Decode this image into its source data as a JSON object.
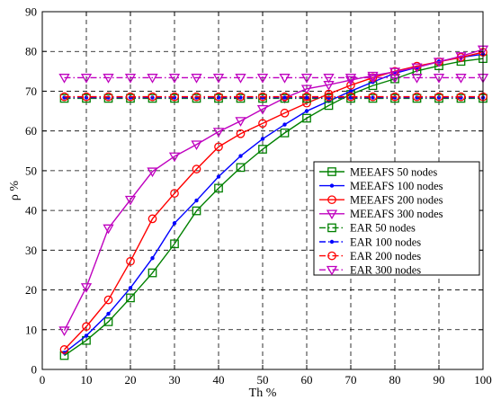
{
  "chart_data": {
    "type": "line",
    "title": "",
    "xlabel": "Th %",
    "ylabel": "ρ %",
    "xlim": [
      0,
      100
    ],
    "ylim": [
      0,
      90
    ],
    "xticks": [
      0,
      10,
      20,
      30,
      40,
      50,
      60,
      70,
      80,
      90,
      100
    ],
    "yticks": [
      0,
      10,
      20,
      30,
      40,
      50,
      60,
      70,
      80,
      90
    ],
    "grid": true,
    "grid_style": "dashed",
    "legend_position": "center-right",
    "x": [
      5,
      10,
      15,
      20,
      25,
      30,
      35,
      40,
      45,
      50,
      55,
      60,
      65,
      70,
      75,
      80,
      85,
      90,
      95,
      100
    ],
    "series": [
      {
        "name": "MEEAFS 50 nodes",
        "color": "#008000",
        "line": "solid",
        "marker": "square",
        "values": [
          3.5,
          7.3,
          12,
          18,
          24.3,
          31.6,
          39.9,
          45.6,
          50.8,
          55.4,
          59.5,
          63.2,
          66.4,
          69.2,
          71.4,
          73.1,
          75.1,
          76.4,
          77.5,
          78.2
        ]
      },
      {
        "name": "MEEAFS 100 nodes",
        "color": "#0000ff",
        "line": "solid",
        "marker": "dot",
        "values": [
          4.2,
          8.5,
          14,
          20.5,
          28,
          36.8,
          42.5,
          48.5,
          53.7,
          58,
          61.6,
          65,
          67.5,
          70,
          72.3,
          74.5,
          76,
          77.5,
          78.5,
          79.3
        ]
      },
      {
        "name": "MEEAFS 200 nodes",
        "color": "#ff0000",
        "line": "solid",
        "marker": "circle",
        "values": [
          5,
          10.8,
          17.5,
          27.2,
          37.9,
          44.3,
          50.4,
          56,
          59.3,
          61.9,
          64.5,
          67,
          69.3,
          71.5,
          73.4,
          75,
          76.3,
          77.4,
          78.5,
          79.8
        ]
      },
      {
        "name": "MEEAFS 300 nodes",
        "color": "#bf00bf",
        "line": "solid",
        "marker": "triangle-down",
        "values": [
          9.8,
          20.7,
          35.5,
          42.7,
          49.8,
          53.6,
          56.6,
          59.8,
          62.5,
          65.5,
          68.3,
          70.6,
          71.6,
          72.8,
          73.9,
          74.9,
          76,
          77.4,
          78.8,
          80.5
        ]
      },
      {
        "name": "EAR 50 nodes",
        "color": "#008000",
        "line": "dashdot",
        "marker": "square",
        "values": [
          68.2,
          68.2,
          68.2,
          68.2,
          68.2,
          68.2,
          68.2,
          68.2,
          68.2,
          68.2,
          68.2,
          68.2,
          68.2,
          68.2,
          68.2,
          68.2,
          68.2,
          68.2,
          68.2,
          68.2
        ]
      },
      {
        "name": "EAR 100 nodes",
        "color": "#0000ff",
        "line": "dashdot",
        "marker": "dot",
        "values": [
          68.4,
          68.4,
          68.4,
          68.4,
          68.4,
          68.4,
          68.4,
          68.4,
          68.4,
          68.4,
          68.4,
          68.4,
          68.4,
          68.4,
          68.4,
          68.4,
          68.4,
          68.4,
          68.4,
          68.4
        ]
      },
      {
        "name": "EAR 200 nodes",
        "color": "#ff0000",
        "line": "dashdot",
        "marker": "circle",
        "values": [
          68.6,
          68.6,
          68.6,
          68.6,
          68.6,
          68.6,
          68.6,
          68.6,
          68.6,
          68.6,
          68.6,
          68.6,
          68.6,
          68.6,
          68.6,
          68.6,
          68.6,
          68.6,
          68.6,
          68.6
        ]
      },
      {
        "name": "EAR 300 nodes",
        "color": "#bf00bf",
        "line": "dashdot",
        "marker": "triangle-down",
        "values": [
          73.4,
          73.4,
          73.4,
          73.4,
          73.4,
          73.4,
          73.4,
          73.4,
          73.4,
          73.4,
          73.4,
          73.4,
          73.4,
          73.4,
          73.4,
          73.4,
          73.4,
          73.4,
          73.4,
          73.4
        ]
      }
    ]
  }
}
